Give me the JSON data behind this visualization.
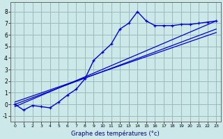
{
  "title": "Graphe des températures (°c)",
  "bg_color": "#cce8e8",
  "grid_color": "#99bbbb",
  "line_color": "#0000cc",
  "xlim": [
    -0.5,
    23.5
  ],
  "ylim": [
    -1.5,
    8.8
  ],
  "xticks": [
    0,
    1,
    2,
    3,
    4,
    5,
    6,
    7,
    8,
    9,
    10,
    11,
    12,
    13,
    14,
    15,
    16,
    17,
    18,
    19,
    20,
    21,
    22,
    23
  ],
  "yticks": [
    -1,
    0,
    1,
    2,
    3,
    4,
    5,
    6,
    7,
    8
  ],
  "curve1_x": [
    0,
    1,
    2,
    3,
    4,
    5,
    6,
    7,
    8,
    9,
    10,
    11,
    12,
    13,
    14,
    15,
    16,
    17,
    18,
    19,
    20,
    21,
    22,
    23
  ],
  "curve1_y": [
    0.0,
    -0.5,
    -0.1,
    -0.2,
    -0.3,
    0.2,
    0.8,
    1.3,
    2.2,
    3.8,
    4.5,
    5.2,
    6.5,
    7.0,
    8.0,
    7.2,
    6.8,
    6.8,
    6.8,
    6.9,
    6.9,
    7.0,
    7.1,
    7.2
  ],
  "line2_x": [
    0,
    23
  ],
  "line2_y": [
    0.0,
    6.5
  ],
  "line3_x": [
    0,
    23
  ],
  "line3_y": [
    -0.2,
    7.2
  ],
  "line4_x": [
    0,
    23
  ],
  "line4_y": [
    0.2,
    6.2
  ]
}
